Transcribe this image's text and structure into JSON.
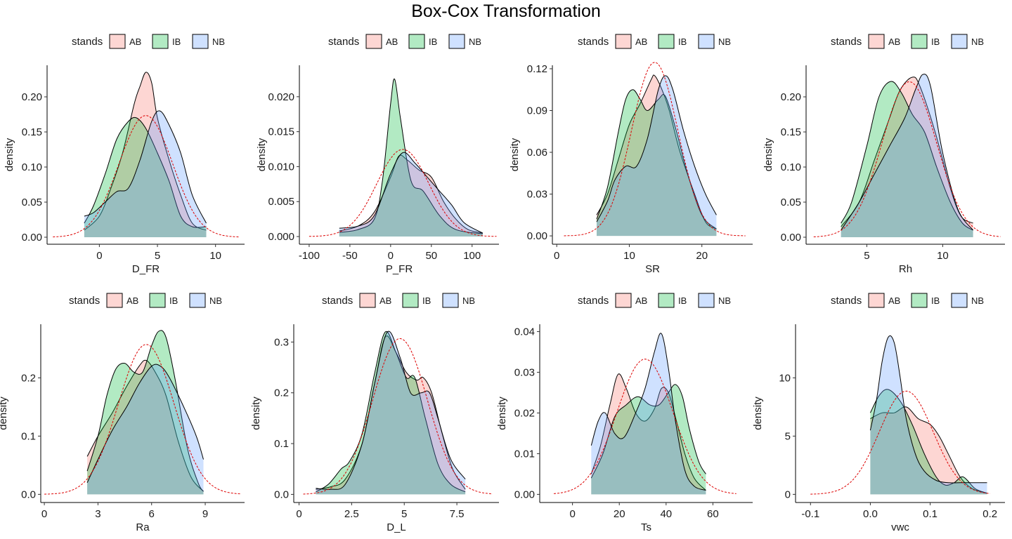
{
  "page": {
    "title": "Box-Cox Transformation"
  },
  "legend_colors": {
    "AB": "#F8766D",
    "IB": "#00BA38",
    "NB": "#619CFF",
    "overlap": "#9BBFBF",
    "normal_curve": "#DD0000"
  },
  "chart_data": [
    {
      "type": "area",
      "title": "",
      "xlabel": "D_FR",
      "ylabel": "density",
      "legend": {
        "title": "stands",
        "labels": [
          "AB",
          "IB",
          "NB"
        ],
        "position": "top"
      },
      "xlim": [
        -4.5,
        12.5
      ],
      "ylim": [
        -0.01,
        0.245
      ],
      "grid": false,
      "xticks": [
        0,
        5,
        10
      ],
      "yticks": [
        0.0,
        0.05,
        0.1,
        0.15,
        0.2
      ],
      "ytick_labels": [
        "0.00",
        "0.05",
        "0.10",
        "0.15",
        "0.20"
      ],
      "x_range": [
        -1.3,
        9.2
      ],
      "series": [
        {
          "name": "AB",
          "x": [
            -1.3,
            0,
            1,
            2,
            3,
            3.5,
            4,
            4.5,
            5,
            6,
            7,
            8,
            9.2
          ],
          "y": [
            0.01,
            0.03,
            0.07,
            0.12,
            0.19,
            0.215,
            0.235,
            0.22,
            0.17,
            0.11,
            0.06,
            0.02,
            0.01
          ]
        },
        {
          "name": "IB",
          "x": [
            -1.3,
            -0.5,
            0.5,
            1.5,
            2.5,
            3.2,
            4,
            5,
            6,
            7,
            8,
            9.2
          ],
          "y": [
            0.02,
            0.045,
            0.09,
            0.14,
            0.165,
            0.17,
            0.155,
            0.12,
            0.08,
            0.03,
            0.015,
            0.015
          ]
        },
        {
          "name": "NB",
          "x": [
            -1.3,
            -0.5,
            0.5,
            1.5,
            2.5,
            3.5,
            4.5,
            5.2,
            6,
            7,
            8,
            9.2
          ],
          "y": [
            0.03,
            0.035,
            0.05,
            0.065,
            0.07,
            0.11,
            0.165,
            0.18,
            0.16,
            0.12,
            0.06,
            0.02
          ]
        }
      ],
      "normal": {
        "mean": 4.0,
        "sd": 2.3,
        "x_range": [
          -4.0,
          12.0
        ]
      }
    },
    {
      "type": "area",
      "title": "",
      "xlabel": "P_FR",
      "ylabel": "density",
      "legend": {
        "title": "stands",
        "labels": [
          "AB",
          "IB",
          "NB"
        ],
        "position": "top"
      },
      "xlim": [
        -112,
        133
      ],
      "ylim": [
        -0.0011,
        0.0245
      ],
      "grid": false,
      "xticks": [
        -100,
        -50,
        0,
        50,
        100
      ],
      "yticks": [
        0.0,
        0.005,
        0.01,
        0.015,
        0.02
      ],
      "ytick_labels": [
        "0.000",
        "0.005",
        "0.010",
        "0.015",
        "0.020"
      ],
      "x_range": [
        -63,
        113
      ],
      "series": [
        {
          "name": "AB",
          "x": [
            -63,
            -40,
            -20,
            0,
            10,
            20,
            35,
            50,
            65,
            80,
            95,
            113
          ],
          "y": [
            0.0008,
            0.0015,
            0.0035,
            0.0085,
            0.0115,
            0.011,
            0.0095,
            0.0085,
            0.005,
            0.0025,
            0.001,
            0.0005
          ]
        },
        {
          "name": "IB",
          "x": [
            -63,
            -40,
            -20,
            -10,
            0,
            5,
            12,
            25,
            40,
            60,
            80,
            113
          ],
          "y": [
            0.0006,
            0.001,
            0.0025,
            0.008,
            0.019,
            0.0225,
            0.017,
            0.008,
            0.0065,
            0.003,
            0.001,
            0.0004
          ]
        },
        {
          "name": "NB",
          "x": [
            -63,
            -40,
            -20,
            0,
            15,
            30,
            45,
            60,
            75,
            90,
            113
          ],
          "y": [
            0.0012,
            0.0015,
            0.003,
            0.009,
            0.012,
            0.0105,
            0.0085,
            0.0065,
            0.0045,
            0.002,
            0.0005
          ]
        }
      ],
      "normal": {
        "mean": 15,
        "sd": 32,
        "x_range": [
          -100,
          130
        ]
      }
    },
    {
      "type": "area",
      "title": "",
      "xlabel": "SR",
      "ylabel": "density",
      "legend": {
        "title": "stands",
        "labels": [
          "AB",
          "IB",
          "NB"
        ],
        "position": "top"
      },
      "xlim": [
        -0.6,
        27.0
      ],
      "ylim": [
        -0.006,
        0.1225
      ],
      "grid": false,
      "xticks": [
        0,
        10,
        20
      ],
      "yticks": [
        0.0,
        0.03,
        0.06,
        0.09,
        0.12
      ],
      "ytick_labels": [
        "0.00",
        "0.03",
        "0.06",
        "0.09",
        "0.12"
      ],
      "x_range": [
        5.5,
        22
      ],
      "series": [
        {
          "name": "AB",
          "x": [
            5.5,
            7,
            8.5,
            10,
            11.5,
            13,
            13.5,
            14.5,
            15.5,
            17,
            19,
            20.5,
            22
          ],
          "y": [
            0.015,
            0.03,
            0.055,
            0.08,
            0.095,
            0.112,
            0.115,
            0.105,
            0.09,
            0.06,
            0.03,
            0.01,
            0.005
          ]
        },
        {
          "name": "IB",
          "x": [
            5.5,
            7,
            8.5,
            9.5,
            10.5,
            11.5,
            12.5,
            14,
            15,
            16.5,
            18,
            20,
            22
          ],
          "y": [
            0.012,
            0.035,
            0.075,
            0.098,
            0.105,
            0.098,
            0.09,
            0.098,
            0.1,
            0.075,
            0.045,
            0.015,
            0.005
          ]
        },
        {
          "name": "NB",
          "x": [
            5.5,
            7,
            8,
            9.5,
            11,
            12.5,
            14,
            15,
            16,
            17.5,
            19,
            20.5,
            22
          ],
          "y": [
            0.01,
            0.025,
            0.04,
            0.05,
            0.05,
            0.07,
            0.105,
            0.115,
            0.105,
            0.075,
            0.05,
            0.03,
            0.015
          ]
        }
      ],
      "normal": {
        "mean": 13.5,
        "sd": 3.2,
        "x_range": [
          1,
          26
        ]
      }
    },
    {
      "type": "area",
      "title": "",
      "xlabel": "Rh",
      "ylabel": "density",
      "legend": {
        "title": "stands",
        "labels": [
          "AB",
          "IB",
          "NB"
        ],
        "position": "top"
      },
      "xlim": [
        1.0,
        14.1
      ],
      "ylim": [
        -0.01,
        0.245
      ],
      "grid": false,
      "xticks": [
        5,
        10
      ],
      "yticks": [
        0.0,
        0.05,
        0.1,
        0.15,
        0.2
      ],
      "ytick_labels": [
        "0.00",
        "0.05",
        "0.10",
        "0.15",
        "0.20"
      ],
      "x_range": [
        3.3,
        12
      ],
      "series": [
        {
          "name": "AB",
          "x": [
            3.3,
            4.5,
            5.5,
            6.5,
            7.2,
            8,
            8.5,
            9.5,
            10.5,
            11.2,
            12
          ],
          "y": [
            0.015,
            0.05,
            0.11,
            0.17,
            0.21,
            0.228,
            0.215,
            0.15,
            0.07,
            0.03,
            0.02
          ]
        },
        {
          "name": "IB",
          "x": [
            3.3,
            4,
            5,
            5.8,
            6.6,
            7.3,
            8,
            8.8,
            9.6,
            10.5,
            11.3,
            12
          ],
          "y": [
            0.02,
            0.05,
            0.13,
            0.2,
            0.222,
            0.205,
            0.175,
            0.15,
            0.1,
            0.05,
            0.02,
            0.01
          ]
        },
        {
          "name": "NB",
          "x": [
            3.3,
            4.5,
            5.5,
            6.5,
            7.5,
            8.2,
            8.7,
            9.2,
            10,
            11,
            12
          ],
          "y": [
            0.01,
            0.05,
            0.09,
            0.13,
            0.17,
            0.21,
            0.232,
            0.215,
            0.12,
            0.04,
            0.01
          ]
        }
      ],
      "normal": {
        "mean": 7.8,
        "sd": 1.8,
        "x_range": [
          1.5,
          13.8
        ]
      }
    },
    {
      "type": "area",
      "title": "",
      "xlabel": "Ra",
      "ylabel": "density",
      "legend": {
        "title": "stands",
        "labels": [
          "AB",
          "IB",
          "NB"
        ],
        "position": "top"
      },
      "xlim": [
        -0.2,
        11.2
      ],
      "ylim": [
        -0.014,
        0.292
      ],
      "grid": false,
      "xticks": [
        0,
        3,
        6,
        9
      ],
      "yticks": [
        0.0,
        0.1,
        0.2
      ],
      "ytick_labels": [
        "0.0",
        "0.1",
        "0.2"
      ],
      "x_range": [
        2.4,
        8.9
      ],
      "series": [
        {
          "name": "AB",
          "x": [
            2.4,
            3,
            3.8,
            4.6,
            5.3,
            5.7,
            6.2,
            6.8,
            7.5,
            8.2,
            8.9
          ],
          "y": [
            0.065,
            0.1,
            0.14,
            0.185,
            0.22,
            0.23,
            0.21,
            0.17,
            0.09,
            0.03,
            0.005
          ]
        },
        {
          "name": "IB",
          "x": [
            2.4,
            3,
            3.5,
            4,
            4.5,
            5,
            5.5,
            6,
            6.4,
            6.8,
            7.3,
            8,
            8.6,
            8.9
          ],
          "y": [
            0.04,
            0.1,
            0.17,
            0.215,
            0.225,
            0.21,
            0.21,
            0.255,
            0.28,
            0.27,
            0.2,
            0.08,
            0.02,
            0.005
          ]
        },
        {
          "name": "NB",
          "x": [
            2.4,
            3,
            3.8,
            4.6,
            5.3,
            6,
            6.5,
            7,
            7.8,
            8.5,
            8.9
          ],
          "y": [
            0.02,
            0.06,
            0.11,
            0.15,
            0.19,
            0.22,
            0.22,
            0.2,
            0.15,
            0.1,
            0.06
          ]
        }
      ],
      "normal": {
        "mean": 5.7,
        "sd": 1.55,
        "x_range": [
          0,
          11
        ]
      }
    },
    {
      "type": "area",
      "title": "",
      "xlabel": "D_L",
      "ylabel": "density",
      "legend": {
        "title": "stands",
        "labels": [
          "AB",
          "IB",
          "NB"
        ],
        "position": "top"
      },
      "xlim": [
        -0.25,
        9.5
      ],
      "ylim": [
        -0.016,
        0.335
      ],
      "grid": false,
      "xticks": [
        0.0,
        2.5,
        5.0,
        7.5
      ],
      "yticks": [
        0.0,
        0.1,
        0.2,
        0.3
      ],
      "ytick_labels": [
        "0.0",
        "0.1",
        "0.2",
        "0.3"
      ],
      "x_range": [
        0.8,
        7.9
      ],
      "series": [
        {
          "name": "AB",
          "x": [
            0.8,
            1.5,
            2.2,
            3,
            3.6,
            4.1,
            4.6,
            5.1,
            5.6,
            5.9,
            6.3,
            6.8,
            7.3,
            7.9
          ],
          "y": [
            0.01,
            0.015,
            0.03,
            0.1,
            0.22,
            0.31,
            0.28,
            0.24,
            0.225,
            0.23,
            0.2,
            0.12,
            0.05,
            0.01
          ]
        },
        {
          "name": "IB",
          "x": [
            0.8,
            1.4,
            2,
            2.4,
            3,
            3.6,
            4.1,
            4.6,
            5.1,
            5.5,
            6,
            6.6,
            7.2,
            7.9
          ],
          "y": [
            0.005,
            0.02,
            0.05,
            0.065,
            0.12,
            0.24,
            0.32,
            0.28,
            0.23,
            0.23,
            0.15,
            0.06,
            0.02,
            0.005
          ]
        },
        {
          "name": "NB",
          "x": [
            0.8,
            1.5,
            2.2,
            3,
            3.6,
            4.2,
            4.8,
            5.3,
            5.8,
            6.2,
            6.6,
            7.2,
            7.9
          ],
          "y": [
            0.012,
            0.01,
            0.02,
            0.1,
            0.22,
            0.32,
            0.27,
            0.2,
            0.2,
            0.2,
            0.15,
            0.07,
            0.03
          ]
        }
      ],
      "normal": {
        "mean": 4.8,
        "sd": 1.3,
        "x_range": [
          0.2,
          9.2
        ]
      }
    },
    {
      "type": "area",
      "title": "",
      "xlabel": "Ts",
      "ylabel": "density",
      "legend": {
        "title": "stands",
        "labels": [
          "AB",
          "IB",
          "NB"
        ],
        "position": "top"
      },
      "xlim": [
        -14,
        77
      ],
      "ylim": [
        -0.002,
        0.0418
      ],
      "grid": false,
      "xticks": [
        0,
        20,
        40,
        60
      ],
      "yticks": [
        0.0,
        0.01,
        0.02,
        0.03,
        0.04
      ],
      "ytick_labels": [
        "0.00",
        "0.01",
        "0.02",
        "0.03",
        "0.04"
      ],
      "x_range": [
        8,
        57
      ],
      "series": [
        {
          "name": "AB",
          "x": [
            8,
            12,
            16,
            19.5,
            23,
            27,
            31,
            35,
            38,
            41,
            44,
            48,
            52,
            57
          ],
          "y": [
            0.005,
            0.012,
            0.022,
            0.0295,
            0.026,
            0.02,
            0.018,
            0.021,
            0.026,
            0.025,
            0.019,
            0.01,
            0.004,
            0.001
          ]
        },
        {
          "name": "IB",
          "x": [
            8,
            13,
            18,
            23,
            28,
            33,
            37,
            41,
            44,
            47,
            50,
            54,
            57
          ],
          "y": [
            0.004,
            0.01,
            0.019,
            0.022,
            0.024,
            0.022,
            0.022,
            0.025,
            0.027,
            0.024,
            0.016,
            0.008,
            0.005
          ]
        },
        {
          "name": "NB",
          "x": [
            8,
            11,
            14,
            18,
            22,
            27,
            31,
            35,
            38,
            41,
            44,
            48,
            52,
            57
          ],
          "y": [
            0.012,
            0.018,
            0.02,
            0.015,
            0.014,
            0.02,
            0.026,
            0.035,
            0.0395,
            0.031,
            0.018,
            0.006,
            0.002,
            0.001
          ]
        }
      ],
      "normal": {
        "mean": 31,
        "sd": 12,
        "x_range": [
          -8,
          70
        ]
      }
    },
    {
      "type": "area",
      "title": "",
      "xlabel": "vwc",
      "ylabel": "density",
      "legend": {
        "title": "stands",
        "labels": [
          "AB",
          "IB",
          "NB"
        ],
        "position": "top"
      },
      "xlim": [
        -0.125,
        0.225
      ],
      "ylim": [
        -0.7,
        14.6
      ],
      "grid": false,
      "xticks": [
        -0.1,
        0.0,
        0.1,
        0.2
      ],
      "xtick_labels": [
        "-0.1",
        "0.0",
        "0.1",
        "0.2"
      ],
      "yticks": [
        0,
        5,
        10
      ],
      "ytick_labels": [
        "0",
        "5",
        "10"
      ],
      "x_range": [
        0.0,
        0.195
      ],
      "series": [
        {
          "name": "AB",
          "x": [
            0.0,
            0.02,
            0.04,
            0.06,
            0.08,
            0.1,
            0.115,
            0.13,
            0.15,
            0.17,
            0.195
          ],
          "y": [
            6.5,
            7,
            7,
            7.5,
            6.5,
            6,
            5,
            3.5,
            1.5,
            0.5,
            0.1
          ]
        },
        {
          "name": "IB",
          "x": [
            0.0,
            0.015,
            0.03,
            0.05,
            0.07,
            0.09,
            0.11,
            0.125,
            0.14,
            0.155,
            0.175,
            0.195
          ],
          "y": [
            7,
            8.5,
            9,
            8,
            6,
            3.5,
            1.5,
            0.8,
            1,
            1.5,
            0.5,
            0.1
          ]
        },
        {
          "name": "NB",
          "x": [
            0.0,
            0.01,
            0.02,
            0.03,
            0.04,
            0.05,
            0.06,
            0.075,
            0.09,
            0.11,
            0.13,
            0.15,
            0.195
          ],
          "y": [
            5.5,
            8,
            11.5,
            13.5,
            13,
            10,
            6.5,
            3.5,
            2,
            1.2,
            1,
            1,
            1
          ]
        }
      ],
      "normal": {
        "mean": 0.06,
        "sd": 0.045,
        "x_range": [
          -0.1,
          0.2
        ]
      }
    }
  ]
}
